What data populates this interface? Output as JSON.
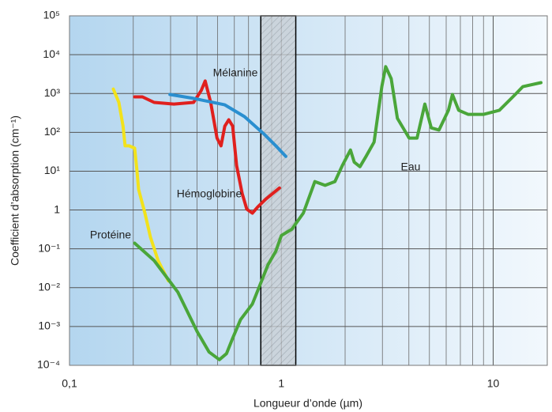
{
  "chart_data": {
    "type": "line",
    "xlabel": "Longueur d’onde (µm)",
    "ylabel": "Coefficient d’absorption (cm⁻¹)",
    "xscale": "log",
    "yscale": "log",
    "grid": true,
    "xlim": [
      0.1,
      18
    ],
    "ylim": [
      0.0001,
      100000
    ],
    "xticks": [
      {
        "value": 0.1,
        "label": "0,1"
      },
      1,
      10
    ],
    "xminor_ticks": [
      0.2,
      0.3,
      0.4,
      0.5,
      0.6,
      0.7,
      0.8,
      0.9,
      2,
      3,
      4,
      5,
      6,
      7,
      8,
      9
    ],
    "yticks": [
      {
        "value": 100000,
        "label": "10⁵"
      },
      {
        "value": 10000,
        "label": "10⁴"
      },
      {
        "value": 1000,
        "label": "10³"
      },
      {
        "value": 100,
        "label": "10²"
      },
      {
        "value": 10,
        "label": "10¹"
      },
      1,
      {
        "value": 0.1,
        "label": "10⁻¹"
      },
      {
        "value": 0.01,
        "label": "10⁻²"
      },
      {
        "value": 0.001,
        "label": "10⁻³"
      },
      {
        "value": 0.0001,
        "label": "10⁻⁴"
      }
    ],
    "highlight_band": [
      0.8,
      1.17
    ],
    "series": [
      {
        "name": "Protéine",
        "color": "#f2e21c",
        "x": [
          0.161,
          0.171,
          0.179,
          0.183,
          0.191,
          0.203,
          0.208,
          0.212,
          0.227,
          0.241,
          0.262,
          0.293
        ],
        "values": [
          1300,
          590,
          145,
          45,
          45,
          39,
          11,
          3.4,
          0.83,
          0.2,
          0.05,
          0.015
        ]
      },
      {
        "name": "Hémoglobine",
        "color": "#e0201e",
        "x": [
          0.203,
          0.221,
          0.251,
          0.311,
          0.385,
          0.419,
          0.437,
          0.464,
          0.497,
          0.519,
          0.541,
          0.565,
          0.589,
          0.615,
          0.653,
          0.687,
          0.73,
          0.774,
          0.843,
          0.98
        ],
        "values": [
          820,
          820,
          590,
          535,
          590,
          1200,
          2100,
          590,
          71,
          45,
          145,
          210,
          145,
          14,
          2.7,
          1.05,
          0.83,
          1.2,
          1.9,
          3.7
        ]
      },
      {
        "name": "Mélanine",
        "color": "#2a8fd0",
        "x": [
          0.298,
          0.385,
          0.541,
          0.67,
          0.829,
          0.942,
          1.05
        ],
        "values": [
          940,
          750,
          510,
          253,
          90,
          45,
          24
        ]
      },
      {
        "name": "Eau",
        "color": "#4aa63a",
        "x": [
          0.203,
          0.251,
          0.325,
          0.401,
          0.456,
          0.51,
          0.551,
          0.589,
          0.642,
          0.73,
          0.794,
          0.865,
          0.942,
          1,
          1.12,
          1.27,
          1.44,
          1.61,
          1.79,
          1.94,
          2.12,
          2.21,
          2.35,
          2.51,
          2.74,
          2.98,
          3.11,
          3.3,
          3.53,
          4.01,
          4.37,
          4.76,
          5.1,
          5.55,
          6.15,
          6.42,
          6.87,
          7.61,
          9.03,
          10.7,
          12.7,
          13.8,
          16.8
        ],
        "values": [
          0.14,
          0.05,
          0.0076,
          0.00073,
          0.00022,
          0.00014,
          0.0002,
          0.0005,
          0.0015,
          0.0038,
          0.012,
          0.039,
          0.087,
          0.22,
          0.32,
          0.83,
          5.4,
          4.3,
          5.4,
          14,
          35,
          17,
          13,
          24,
          56,
          1500,
          4900,
          2400,
          230,
          71,
          71,
          535,
          130,
          115,
          370,
          940,
          370,
          290,
          290,
          370,
          940,
          1500,
          1900
        ]
      }
    ]
  }
}
